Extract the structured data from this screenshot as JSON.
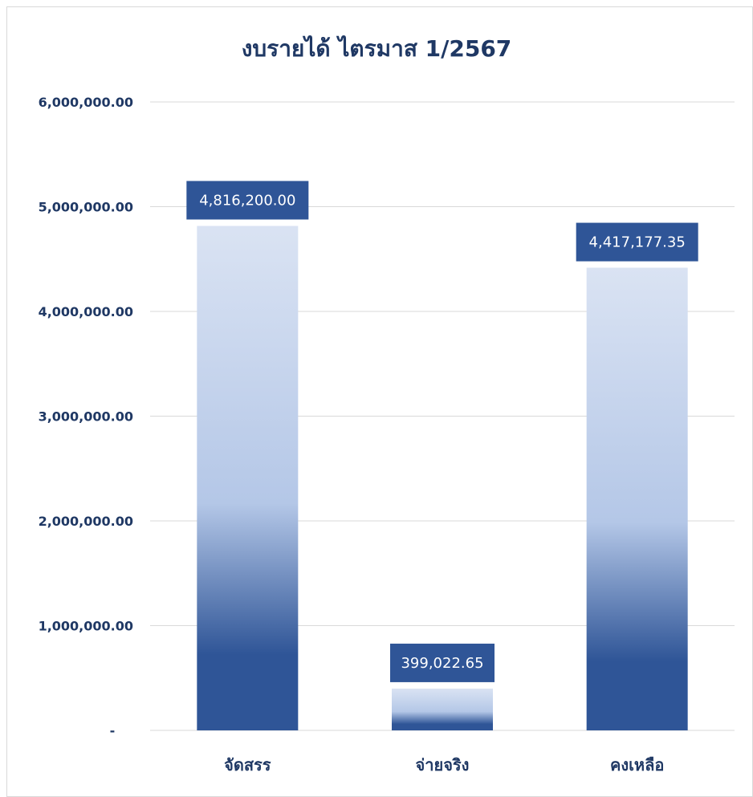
{
  "chart_data": {
    "type": "bar",
    "title": "งบรายได้ ไตรมาส 1/2567",
    "categories": [
      "จัดสรร",
      "จ่ายจริง",
      "คงเหลือ"
    ],
    "values": [
      4816200.0,
      399022.65,
      4417177.35
    ],
    "data_labels": [
      "4,816,200.00",
      "399,022.65",
      "4,417,177.35"
    ],
    "ylim": [
      0,
      6000000
    ],
    "yticks": [
      0,
      1000000,
      2000000,
      3000000,
      4000000,
      5000000,
      6000000
    ],
    "ytick_labels": [
      "-",
      "1,000,000.00",
      "2,000,000.00",
      "3,000,000.00",
      "4,000,000.00",
      "5,000,000.00",
      "6,000,000.00"
    ],
    "xlabel": "",
    "ylabel": "",
    "grid": true,
    "legend": "none"
  },
  "colors": {
    "title": "#1f3864",
    "axis_text": "#1f3864",
    "category_text": "#1f3864",
    "gridline": "#d9d9d9",
    "bar_dark": "#2f5597",
    "bar_mid": "#b4c7e7",
    "bar_light": "#dae3f3",
    "label_box": "#2f5597",
    "label_text": "#ffffff"
  }
}
